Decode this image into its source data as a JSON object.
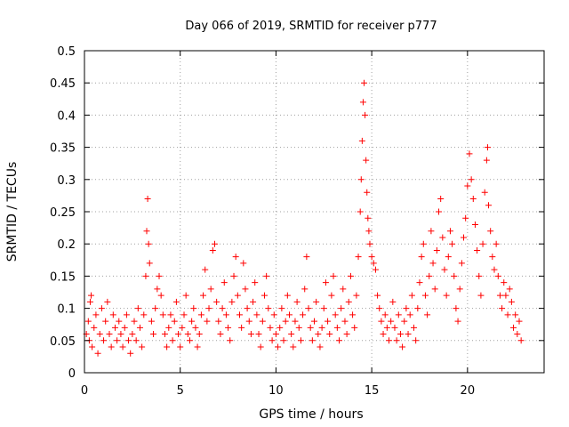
{
  "chart_data": {
    "type": "scatter",
    "title": "Day 066 of 2019, SRMTID for receiver p777",
    "xlabel": "GPS time / hours",
    "ylabel": "SRMTID / TECUs",
    "xlim": [
      0,
      24
    ],
    "ylim": [
      0,
      0.5
    ],
    "x_ticks": [
      0,
      5,
      10,
      15,
      20
    ],
    "x_tick_labels": [
      "0",
      "5",
      "10",
      "15",
      "20"
    ],
    "y_ticks": [
      0,
      0.05,
      0.1,
      0.15,
      0.2,
      0.25,
      0.3,
      0.35,
      0.4,
      0.45,
      0.5
    ],
    "y_tick_labels": [
      "0",
      "0.05",
      "0.1",
      "0.15",
      "0.2",
      "0.25",
      "0.3",
      "0.35",
      "0.4",
      "0.45",
      "0.5"
    ],
    "grid": true,
    "marker": "plus",
    "color": "#ff0000",
    "series": [
      {
        "name": "SRMTID",
        "points": [
          [
            0.1,
            0.06
          ],
          [
            0.2,
            0.08
          ],
          [
            0.25,
            0.05
          ],
          [
            0.3,
            0.11
          ],
          [
            0.35,
            0.12
          ],
          [
            0.4,
            0.04
          ],
          [
            0.5,
            0.07
          ],
          [
            0.6,
            0.09
          ],
          [
            0.7,
            0.03
          ],
          [
            0.8,
            0.06
          ],
          [
            0.9,
            0.1
          ],
          [
            1.0,
            0.05
          ],
          [
            1.1,
            0.08
          ],
          [
            1.2,
            0.11
          ],
          [
            1.3,
            0.06
          ],
          [
            1.4,
            0.04
          ],
          [
            1.5,
            0.09
          ],
          [
            1.6,
            0.07
          ],
          [
            1.7,
            0.05
          ],
          [
            1.8,
            0.08
          ],
          [
            1.9,
            0.06
          ],
          [
            2.0,
            0.04
          ],
          [
            2.1,
            0.07
          ],
          [
            2.2,
            0.09
          ],
          [
            2.3,
            0.05
          ],
          [
            2.4,
            0.03
          ],
          [
            2.5,
            0.06
          ],
          [
            2.6,
            0.08
          ],
          [
            2.7,
            0.05
          ],
          [
            2.8,
            0.1
          ],
          [
            2.9,
            0.07
          ],
          [
            3.0,
            0.04
          ],
          [
            3.1,
            0.09
          ],
          [
            3.2,
            0.15
          ],
          [
            3.25,
            0.22
          ],
          [
            3.3,
            0.27
          ],
          [
            3.35,
            0.2
          ],
          [
            3.4,
            0.17
          ],
          [
            3.5,
            0.08
          ],
          [
            3.6,
            0.06
          ],
          [
            3.7,
            0.1
          ],
          [
            3.8,
            0.13
          ],
          [
            3.9,
            0.15
          ],
          [
            4.0,
            0.12
          ],
          [
            4.1,
            0.09
          ],
          [
            4.2,
            0.06
          ],
          [
            4.3,
            0.04
          ],
          [
            4.4,
            0.07
          ],
          [
            4.5,
            0.09
          ],
          [
            4.6,
            0.05
          ],
          [
            4.7,
            0.08
          ],
          [
            4.8,
            0.11
          ],
          [
            4.9,
            0.06
          ],
          [
            5.0,
            0.04
          ],
          [
            5.1,
            0.07
          ],
          [
            5.2,
            0.09
          ],
          [
            5.3,
            0.12
          ],
          [
            5.4,
            0.06
          ],
          [
            5.5,
            0.05
          ],
          [
            5.6,
            0.08
          ],
          [
            5.7,
            0.1
          ],
          [
            5.8,
            0.07
          ],
          [
            5.9,
            0.04
          ],
          [
            6.0,
            0.06
          ],
          [
            6.1,
            0.09
          ],
          [
            6.2,
            0.12
          ],
          [
            6.3,
            0.16
          ],
          [
            6.4,
            0.08
          ],
          [
            6.5,
            0.1
          ],
          [
            6.6,
            0.13
          ],
          [
            6.7,
            0.19
          ],
          [
            6.8,
            0.2
          ],
          [
            6.9,
            0.11
          ],
          [
            7.0,
            0.08
          ],
          [
            7.1,
            0.06
          ],
          [
            7.2,
            0.1
          ],
          [
            7.3,
            0.14
          ],
          [
            7.4,
            0.09
          ],
          [
            7.5,
            0.07
          ],
          [
            7.6,
            0.05
          ],
          [
            7.7,
            0.11
          ],
          [
            7.8,
            0.15
          ],
          [
            7.9,
            0.18
          ],
          [
            8.0,
            0.12
          ],
          [
            8.1,
            0.09
          ],
          [
            8.2,
            0.07
          ],
          [
            8.3,
            0.17
          ],
          [
            8.4,
            0.13
          ],
          [
            8.5,
            0.1
          ],
          [
            8.6,
            0.08
          ],
          [
            8.7,
            0.06
          ],
          [
            8.8,
            0.11
          ],
          [
            8.9,
            0.14
          ],
          [
            9.0,
            0.09
          ],
          [
            9.1,
            0.06
          ],
          [
            9.2,
            0.04
          ],
          [
            9.3,
            0.08
          ],
          [
            9.4,
            0.12
          ],
          [
            9.5,
            0.15
          ],
          [
            9.6,
            0.1
          ],
          [
            9.7,
            0.07
          ],
          [
            9.8,
            0.05
          ],
          [
            9.9,
            0.09
          ],
          [
            10.0,
            0.06
          ],
          [
            10.1,
            0.04
          ],
          [
            10.2,
            0.07
          ],
          [
            10.3,
            0.1
          ],
          [
            10.4,
            0.05
          ],
          [
            10.5,
            0.08
          ],
          [
            10.6,
            0.12
          ],
          [
            10.7,
            0.09
          ],
          [
            10.8,
            0.06
          ],
          [
            10.9,
            0.04
          ],
          [
            11.0,
            0.08
          ],
          [
            11.1,
            0.11
          ],
          [
            11.2,
            0.07
          ],
          [
            11.3,
            0.05
          ],
          [
            11.4,
            0.09
          ],
          [
            11.5,
            0.13
          ],
          [
            11.6,
            0.18
          ],
          [
            11.7,
            0.1
          ],
          [
            11.8,
            0.07
          ],
          [
            11.9,
            0.05
          ],
          [
            12.0,
            0.08
          ],
          [
            12.1,
            0.11
          ],
          [
            12.2,
            0.06
          ],
          [
            12.3,
            0.04
          ],
          [
            12.4,
            0.07
          ],
          [
            12.5,
            0.1
          ],
          [
            12.6,
            0.14
          ],
          [
            12.7,
            0.08
          ],
          [
            12.8,
            0.06
          ],
          [
            12.9,
            0.12
          ],
          [
            13.0,
            0.15
          ],
          [
            13.1,
            0.09
          ],
          [
            13.2,
            0.07
          ],
          [
            13.3,
            0.05
          ],
          [
            13.4,
            0.1
          ],
          [
            13.5,
            0.13
          ],
          [
            13.6,
            0.08
          ],
          [
            13.7,
            0.06
          ],
          [
            13.8,
            0.11
          ],
          [
            13.9,
            0.15
          ],
          [
            14.0,
            0.09
          ],
          [
            14.1,
            0.07
          ],
          [
            14.2,
            0.12
          ],
          [
            14.3,
            0.18
          ],
          [
            14.4,
            0.25
          ],
          [
            14.45,
            0.3
          ],
          [
            14.5,
            0.36
          ],
          [
            14.55,
            0.42
          ],
          [
            14.6,
            0.45
          ],
          [
            14.65,
            0.4
          ],
          [
            14.7,
            0.33
          ],
          [
            14.75,
            0.28
          ],
          [
            14.8,
            0.24
          ],
          [
            14.85,
            0.22
          ],
          [
            14.9,
            0.2
          ],
          [
            15.0,
            0.18
          ],
          [
            15.1,
            0.17
          ],
          [
            15.2,
            0.16
          ],
          [
            15.3,
            0.12
          ],
          [
            15.4,
            0.1
          ],
          [
            15.5,
            0.08
          ],
          [
            15.6,
            0.06
          ],
          [
            15.7,
            0.09
          ],
          [
            15.8,
            0.07
          ],
          [
            15.9,
            0.05
          ],
          [
            16.0,
            0.08
          ],
          [
            16.1,
            0.11
          ],
          [
            16.2,
            0.07
          ],
          [
            16.3,
            0.05
          ],
          [
            16.4,
            0.09
          ],
          [
            16.5,
            0.06
          ],
          [
            16.6,
            0.04
          ],
          [
            16.7,
            0.08
          ],
          [
            16.8,
            0.1
          ],
          [
            16.9,
            0.06
          ],
          [
            17.0,
            0.09
          ],
          [
            17.1,
            0.12
          ],
          [
            17.2,
            0.07
          ],
          [
            17.3,
            0.05
          ],
          [
            17.4,
            0.1
          ],
          [
            17.5,
            0.14
          ],
          [
            17.6,
            0.18
          ],
          [
            17.7,
            0.2
          ],
          [
            17.8,
            0.12
          ],
          [
            17.9,
            0.09
          ],
          [
            18.0,
            0.15
          ],
          [
            18.1,
            0.22
          ],
          [
            18.2,
            0.17
          ],
          [
            18.3,
            0.13
          ],
          [
            18.4,
            0.19
          ],
          [
            18.5,
            0.25
          ],
          [
            18.6,
            0.27
          ],
          [
            18.7,
            0.21
          ],
          [
            18.8,
            0.16
          ],
          [
            18.9,
            0.12
          ],
          [
            19.0,
            0.18
          ],
          [
            19.1,
            0.22
          ],
          [
            19.2,
            0.2
          ],
          [
            19.3,
            0.15
          ],
          [
            19.4,
            0.1
          ],
          [
            19.5,
            0.08
          ],
          [
            19.6,
            0.13
          ],
          [
            19.7,
            0.17
          ],
          [
            19.8,
            0.21
          ],
          [
            19.9,
            0.24
          ],
          [
            20.0,
            0.29
          ],
          [
            20.1,
            0.34
          ],
          [
            20.2,
            0.3
          ],
          [
            20.3,
            0.27
          ],
          [
            20.4,
            0.23
          ],
          [
            20.5,
            0.19
          ],
          [
            20.6,
            0.15
          ],
          [
            20.7,
            0.12
          ],
          [
            20.8,
            0.2
          ],
          [
            20.9,
            0.28
          ],
          [
            21.0,
            0.33
          ],
          [
            21.05,
            0.35
          ],
          [
            21.1,
            0.26
          ],
          [
            21.2,
            0.22
          ],
          [
            21.3,
            0.18
          ],
          [
            21.4,
            0.16
          ],
          [
            21.5,
            0.2
          ],
          [
            21.6,
            0.15
          ],
          [
            21.7,
            0.12
          ],
          [
            21.8,
            0.1
          ],
          [
            21.9,
            0.14
          ],
          [
            22.0,
            0.12
          ],
          [
            22.1,
            0.09
          ],
          [
            22.2,
            0.13
          ],
          [
            22.3,
            0.11
          ],
          [
            22.4,
            0.07
          ],
          [
            22.5,
            0.09
          ],
          [
            22.6,
            0.06
          ],
          [
            22.7,
            0.08
          ],
          [
            22.8,
            0.05
          ]
        ]
      }
    ]
  }
}
